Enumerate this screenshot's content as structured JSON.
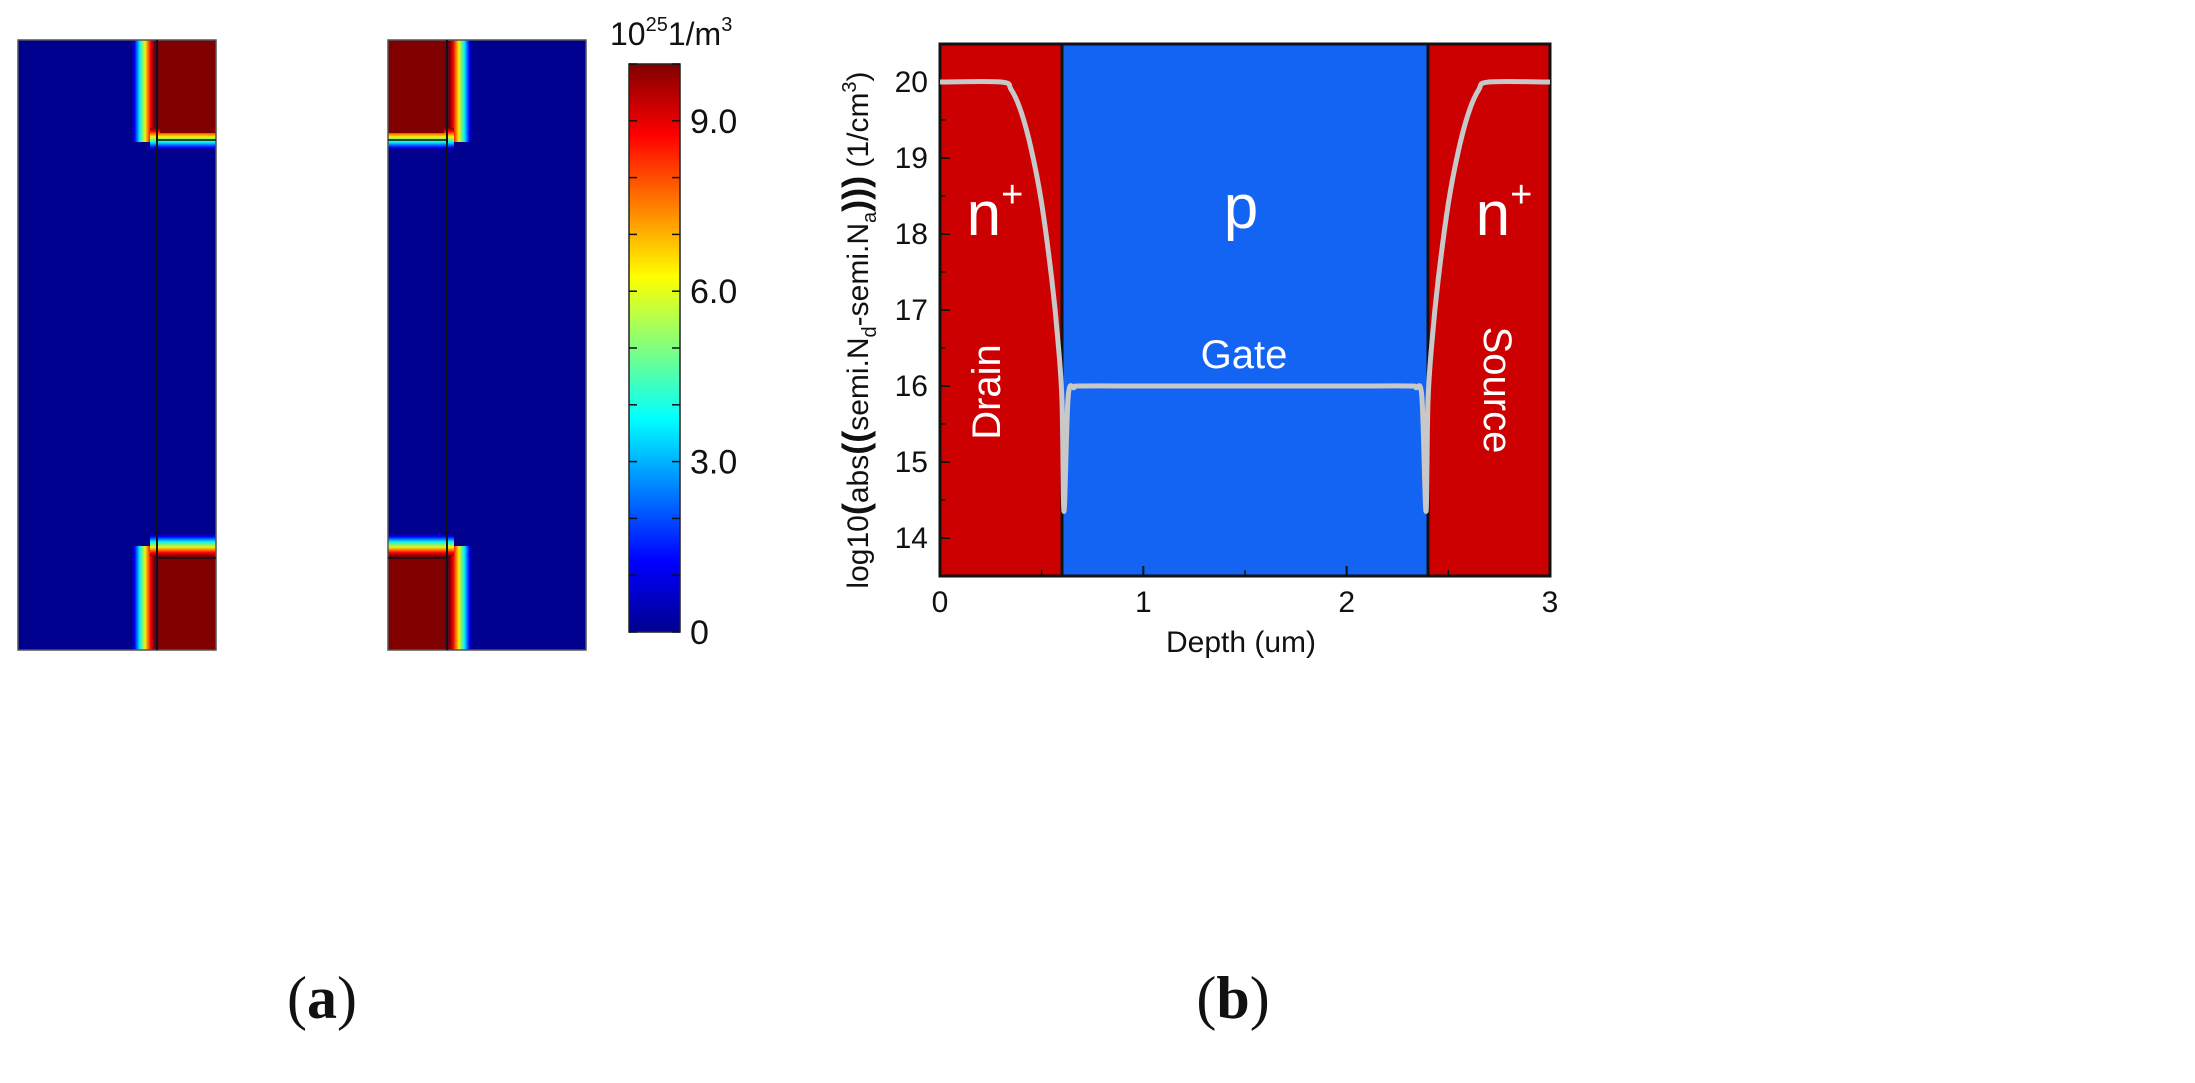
{
  "figure": {
    "panel_a_label": "a",
    "panel_b_label": "b"
  },
  "colors": {
    "jet_dark_blue": "#00008F",
    "jet_dark_red": "#800000",
    "drain_source_region": "#CC0000",
    "gate_region": "#1464F4",
    "doping_curve": "#C8C8C8"
  },
  "chart_data": [
    {
      "type": "heatmap",
      "title": "",
      "colorbar_unit_prefix": "10",
      "colorbar_unit_exponent": "25",
      "colorbar_unit_suffix": "1/m",
      "colorbar_unit_suffix_exponent": "3",
      "colorbar_range": [
        0,
        10
      ],
      "colorbar_ticks": [
        0,
        3.0,
        6.0,
        9.0
      ],
      "colorbar_tick_labels": [
        "0",
        "3.0",
        "6.0",
        "9.0"
      ],
      "colormap": "jet",
      "maps": [
        "left device map",
        "right device map (mirrored)"
      ],
      "max_value": 10,
      "min_value": 0
    },
    {
      "type": "line",
      "title": "",
      "xlabel": "Depth (um)",
      "ylabel_parts": {
        "prefix": "log10",
        "open": "(",
        "abs": "abs",
        "open2": "((",
        "nd": "semi.N",
        "nd_sub": "d",
        "minus": "-semi.N",
        "na_sub": "a",
        "close": ")))",
        "unit": " (1/cm",
        "unit_exp": "3",
        "unit_close": ")"
      },
      "xlim": [
        0,
        3
      ],
      "ylim": [
        13.5,
        20.5
      ],
      "xticks": [
        0,
        1,
        2,
        3
      ],
      "xtick_labels": [
        "0",
        "1",
        "2",
        "3"
      ],
      "yticks": [
        14,
        15,
        16,
        17,
        18,
        19,
        20
      ],
      "ytick_labels": [
        "14",
        "15",
        "16",
        "17",
        "18",
        "19",
        "20"
      ],
      "regions": [
        {
          "name": "Drain",
          "x_start": 0,
          "x_end": 0.6,
          "doping": "n",
          "doping_sup": "+"
        },
        {
          "name": "p",
          "x_start": 0.6,
          "x_end": 2.4,
          "doping": "p",
          "doping_sup": ""
        },
        {
          "name": "Source",
          "x_start": 2.4,
          "x_end": 3.0,
          "doping": "n",
          "doping_sup": "+"
        }
      ],
      "annotations": {
        "drain": "Drain",
        "source": "Source",
        "gate": "Gate",
        "left_doping": "n",
        "left_doping_sup": "+",
        "center_doping": "p",
        "right_doping": "n",
        "right_doping_sup": "+"
      },
      "series": [
        {
          "name": "log10(abs(semi.Nd-semi.Na))",
          "x": [
            0,
            0.3,
            0.35,
            0.4,
            0.45,
            0.5,
            0.55,
            0.58,
            0.6,
            0.61,
            0.63,
            0.66,
            0.7,
            1.0,
            1.5,
            2.0,
            2.3,
            2.34,
            2.37,
            2.39,
            2.4,
            2.42,
            2.45,
            2.5,
            2.55,
            2.6,
            2.65,
            2.7,
            3.0
          ],
          "y": [
            20.0,
            20.0,
            19.9,
            19.6,
            19.1,
            18.4,
            17.4,
            16.6,
            15.8,
            14.35,
            15.85,
            15.98,
            16.0,
            16.0,
            16.0,
            16.0,
            16.0,
            15.98,
            15.85,
            14.35,
            15.8,
            16.6,
            17.4,
            18.4,
            19.1,
            19.6,
            19.9,
            20.0,
            20.0
          ]
        }
      ]
    }
  ]
}
